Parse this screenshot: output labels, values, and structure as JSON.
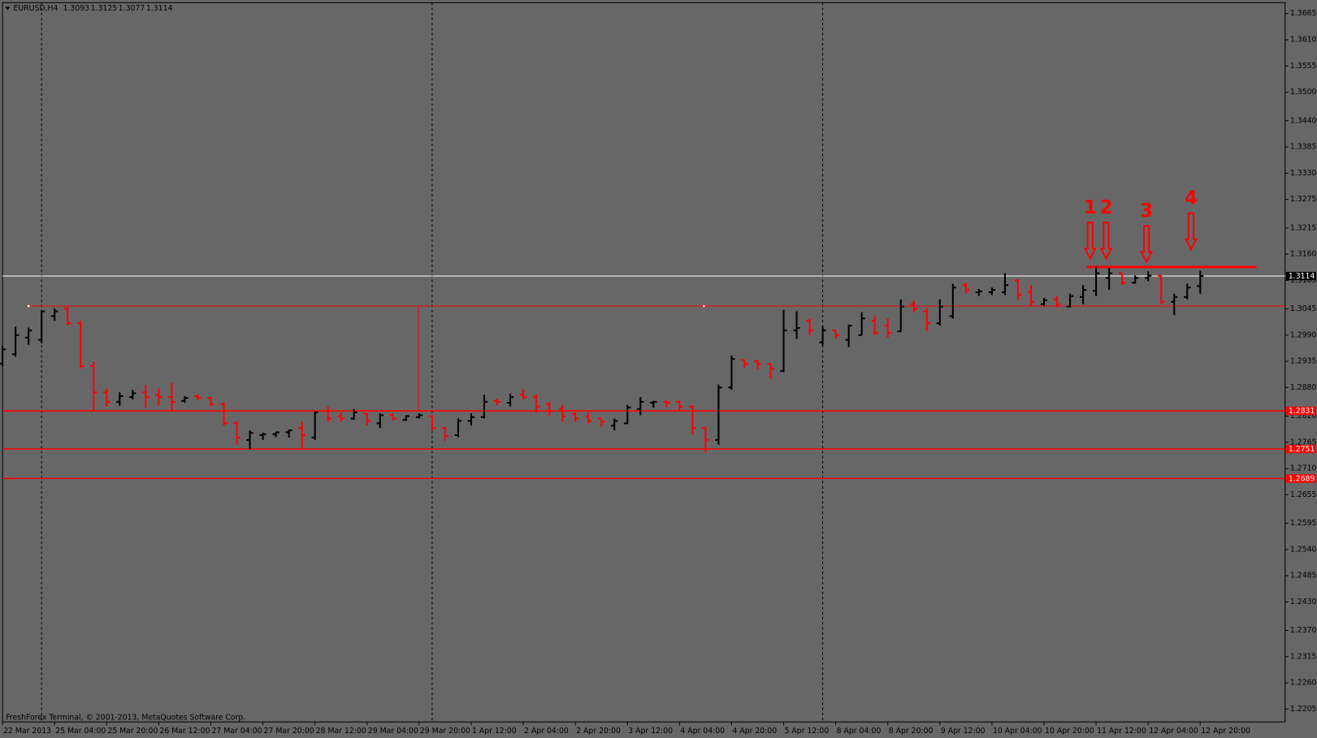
{
  "chart_data": {
    "type": "ohlc",
    "title": "EURUSD,H4",
    "footer": "FreshForex Terminal, © 2001-2013, MetaQuotes Software Corp.",
    "categories": [
      "22 Mar 2013",
      null,
      null,
      null,
      "25 Mar 04:00",
      null,
      null,
      null,
      "25 Mar 20:00",
      null,
      null,
      null,
      "26 Mar 12:00",
      null,
      null,
      null,
      "27 Mar 04:00",
      null,
      null,
      null,
      "27 Mar 20:00",
      null,
      null,
      null,
      "28 Mar 12:00",
      null,
      null,
      null,
      "29 Mar 04:00",
      null,
      null,
      null,
      "29 Mar 20:00",
      null,
      null,
      null,
      "1 Apr 12:00",
      null,
      null,
      null,
      "2 Apr 04:00",
      null,
      null,
      null,
      "2 Apr 20:00",
      null,
      null,
      null,
      "3 Apr 12:00",
      null,
      null,
      null,
      "4 Apr 04:00",
      null,
      null,
      null,
      "4 Apr 20:00",
      null,
      null,
      null,
      "5 Apr 12:00",
      null,
      null,
      null,
      "8 Apr 04:00",
      null,
      null,
      null,
      "8 Apr 20:00",
      null,
      null,
      null,
      "9 Apr 12:00",
      null,
      null,
      null,
      "10 Apr 04:00",
      null,
      null,
      null,
      "10 Apr 20:00",
      null,
      null,
      null,
      "11 Apr 12:00",
      null,
      null,
      null,
      "12 Apr 04:00",
      null,
      null,
      null,
      "12 Apr 20:00"
    ],
    "open": [
      1.293,
      1.295,
      1.2985,
      1.298,
      1.303,
      1.3045,
      1.3015,
      1.2925,
      1.287,
      1.285,
      1.286,
      1.287,
      1.2865,
      1.286,
      1.2852,
      1.2862,
      1.2858,
      1.2845,
      1.2805,
      1.277,
      1.278,
      1.2782,
      1.2786,
      1.2795,
      1.2775,
      1.283,
      1.282,
      1.2815,
      1.2825,
      1.2805,
      1.2822,
      1.2812,
      1.2818,
      1.282,
      1.2795,
      1.278,
      1.281,
      1.2818,
      1.2852,
      1.2848,
      1.2865,
      1.286,
      1.2845,
      1.2835,
      1.2825,
      1.282,
      1.2815,
      1.28,
      1.2805,
      1.2835,
      1.2848,
      1.285,
      1.285,
      1.284,
      1.2795,
      1.277,
      1.288,
      1.2938,
      1.2935,
      1.293,
      1.2915,
      1.3,
      1.302,
      1.2975,
      1.3,
      1.298,
      1.299,
      1.302,
      1.301,
      1.2998,
      1.3055,
      1.304,
      1.3015,
      1.303,
      1.3095,
      1.308,
      1.308,
      1.308,
      1.3105,
      1.308,
      1.3055,
      1.3065,
      1.305,
      1.307,
      1.3083,
      1.311,
      1.312,
      1.31,
      1.311,
      1.3115,
      1.306,
      1.307,
      1.3093
    ],
    "high": [
      1.2968,
      1.3008,
      1.3006,
      1.3042,
      1.3046,
      1.305,
      1.302,
      1.2935,
      1.2878,
      1.287,
      1.2875,
      1.2885,
      1.2878,
      1.289,
      1.2862,
      1.2866,
      1.286,
      1.285,
      1.281,
      1.279,
      1.2785,
      1.2787,
      1.2792,
      1.2808,
      1.283,
      1.284,
      1.2828,
      1.2835,
      1.2826,
      1.2826,
      1.2826,
      1.2822,
      1.2826,
      1.2822,
      1.2797,
      1.2815,
      1.2826,
      1.2865,
      1.2857,
      1.2867,
      1.2877,
      1.2866,
      1.285,
      1.2843,
      1.2828,
      1.2828,
      1.2815,
      1.2815,
      1.2843,
      1.286,
      1.2852,
      1.2853,
      1.2853,
      1.2843,
      1.2795,
      1.2886,
      1.2947,
      1.2938,
      1.2938,
      1.293,
      1.3043,
      1.304,
      1.3025,
      1.3008,
      1.3,
      1.3012,
      1.3038,
      1.303,
      1.3025,
      1.3065,
      1.3063,
      1.3047,
      1.3065,
      1.3098,
      1.31,
      1.3087,
      1.309,
      1.312,
      1.3107,
      1.3095,
      1.3068,
      1.3072,
      1.3077,
      1.3095,
      1.3134,
      1.3132,
      1.312,
      1.3115,
      1.3124,
      1.3115,
      1.3077,
      1.3098,
      1.3125
    ],
    "low": [
      1.2925,
      1.2945,
      1.297,
      1.2973,
      1.302,
      1.301,
      1.292,
      1.283,
      1.284,
      1.2842,
      1.2855,
      1.2838,
      1.2842,
      1.283,
      1.2848,
      1.2853,
      1.284,
      1.28,
      1.276,
      1.275,
      1.277,
      1.2776,
      1.2775,
      1.2752,
      1.277,
      1.2808,
      1.2808,
      1.2812,
      1.28,
      1.2795,
      1.281,
      1.281,
      1.2815,
      1.279,
      1.2768,
      1.2776,
      1.28,
      1.2815,
      1.2842,
      1.284,
      1.2855,
      1.2826,
      1.282,
      1.2808,
      1.2808,
      1.2805,
      1.2798,
      1.279,
      1.2803,
      1.2822,
      1.2838,
      1.2838,
      1.283,
      1.2782,
      1.2743,
      1.276,
      1.2875,
      1.2922,
      1.2918,
      1.2898,
      1.2912,
      1.2982,
      1.299,
      1.2968,
      1.2982,
      1.2965,
      1.299,
      1.299,
      1.2985,
      1.2997,
      1.3038,
      1.2998,
      1.301,
      1.3025,
      1.3077,
      1.3072,
      1.3074,
      1.3074,
      1.3065,
      1.305,
      1.3051,
      1.3048,
      1.3048,
      1.3055,
      1.3072,
      1.3085,
      1.3095,
      1.3098,
      1.3103,
      1.3055,
      1.3032,
      1.3065,
      1.3077
    ],
    "close": [
      1.296,
      1.299,
      1.3,
      1.304,
      1.304,
      1.3015,
      1.2925,
      1.287,
      1.285,
      1.2862,
      1.2868,
      1.286,
      1.286,
      1.285,
      1.2858,
      1.2858,
      1.2845,
      1.2805,
      1.2775,
      1.2785,
      1.2782,
      1.2786,
      1.279,
      1.278,
      1.2828,
      1.2815,
      1.2815,
      1.2828,
      1.281,
      1.2822,
      1.2815,
      1.282,
      1.2822,
      1.2795,
      1.2778,
      1.281,
      1.2818,
      1.285,
      1.285,
      1.286,
      1.286,
      1.284,
      1.283,
      1.282,
      1.2815,
      1.281,
      1.2808,
      1.281,
      1.2838,
      1.285,
      1.285,
      1.2848,
      1.284,
      1.2795,
      1.277,
      1.288,
      1.294,
      1.293,
      1.293,
      1.292,
      1.3,
      1.3005,
      1.3,
      1.3,
      1.299,
      1.301,
      1.3025,
      1.2995,
      1.2995,
      1.305,
      1.3045,
      1.3015,
      1.305,
      1.309,
      1.3085,
      1.3082,
      1.3085,
      1.3095,
      1.3075,
      1.306,
      1.3063,
      1.3055,
      1.3072,
      1.3085,
      1.312,
      1.312,
      1.31,
      1.311,
      1.3115,
      1.306,
      1.307,
      1.309,
      1.3114
    ],
    "up_color": "#000000",
    "down_color": "#ff0000",
    "ylim": [
      1.2178,
      1.3688
    ],
    "yticks": [
      1.3665,
      {
        "value": 1.361,
        "label": "1.3610"
      },
      1.3555,
      {
        "value": 1.35,
        "label": "1.3500"
      },
      {
        "value": 1.344,
        "label": "1.3440"
      },
      1.3385,
      {
        "value": 1.333,
        "label": "1.3330"
      },
      1.3275,
      1.3215,
      {
        "value": 1.316,
        "label": "1.3160"
      },
      1.3105,
      1.3045,
      {
        "value": 1.299,
        "label": "1.2990"
      },
      1.2935,
      {
        "value": 1.288,
        "label": "1.2880"
      },
      {
        "value": 1.282,
        "label": "1.2820"
      },
      1.2765,
      {
        "value": 1.271,
        "label": "1.2710"
      },
      1.2655,
      1.2595,
      {
        "value": 1.254,
        "label": "1.2540"
      },
      1.2485,
      {
        "value": 1.243,
        "label": "1.2430"
      },
      {
        "value": 1.237,
        "label": "1.2370"
      },
      1.2315,
      {
        "value": 1.226,
        "label": "1.2260"
      },
      1.2205
    ],
    "hlines": [
      {
        "value": 1.3114,
        "color": "#ffffff"
      },
      {
        "value": 1.2831,
        "color": "#ff0000"
      },
      {
        "value": 1.2751,
        "color": "#ff0000"
      },
      {
        "value": 1.2689,
        "color": "#ff0000"
      }
    ],
    "levels": [
      {
        "value": 1.3051,
        "color": "#ff0000"
      },
      {
        "value": 1.3133,
        "color": "#ff0000"
      }
    ],
    "annotations": [
      "1",
      "2",
      "3",
      "4"
    ]
  }
}
